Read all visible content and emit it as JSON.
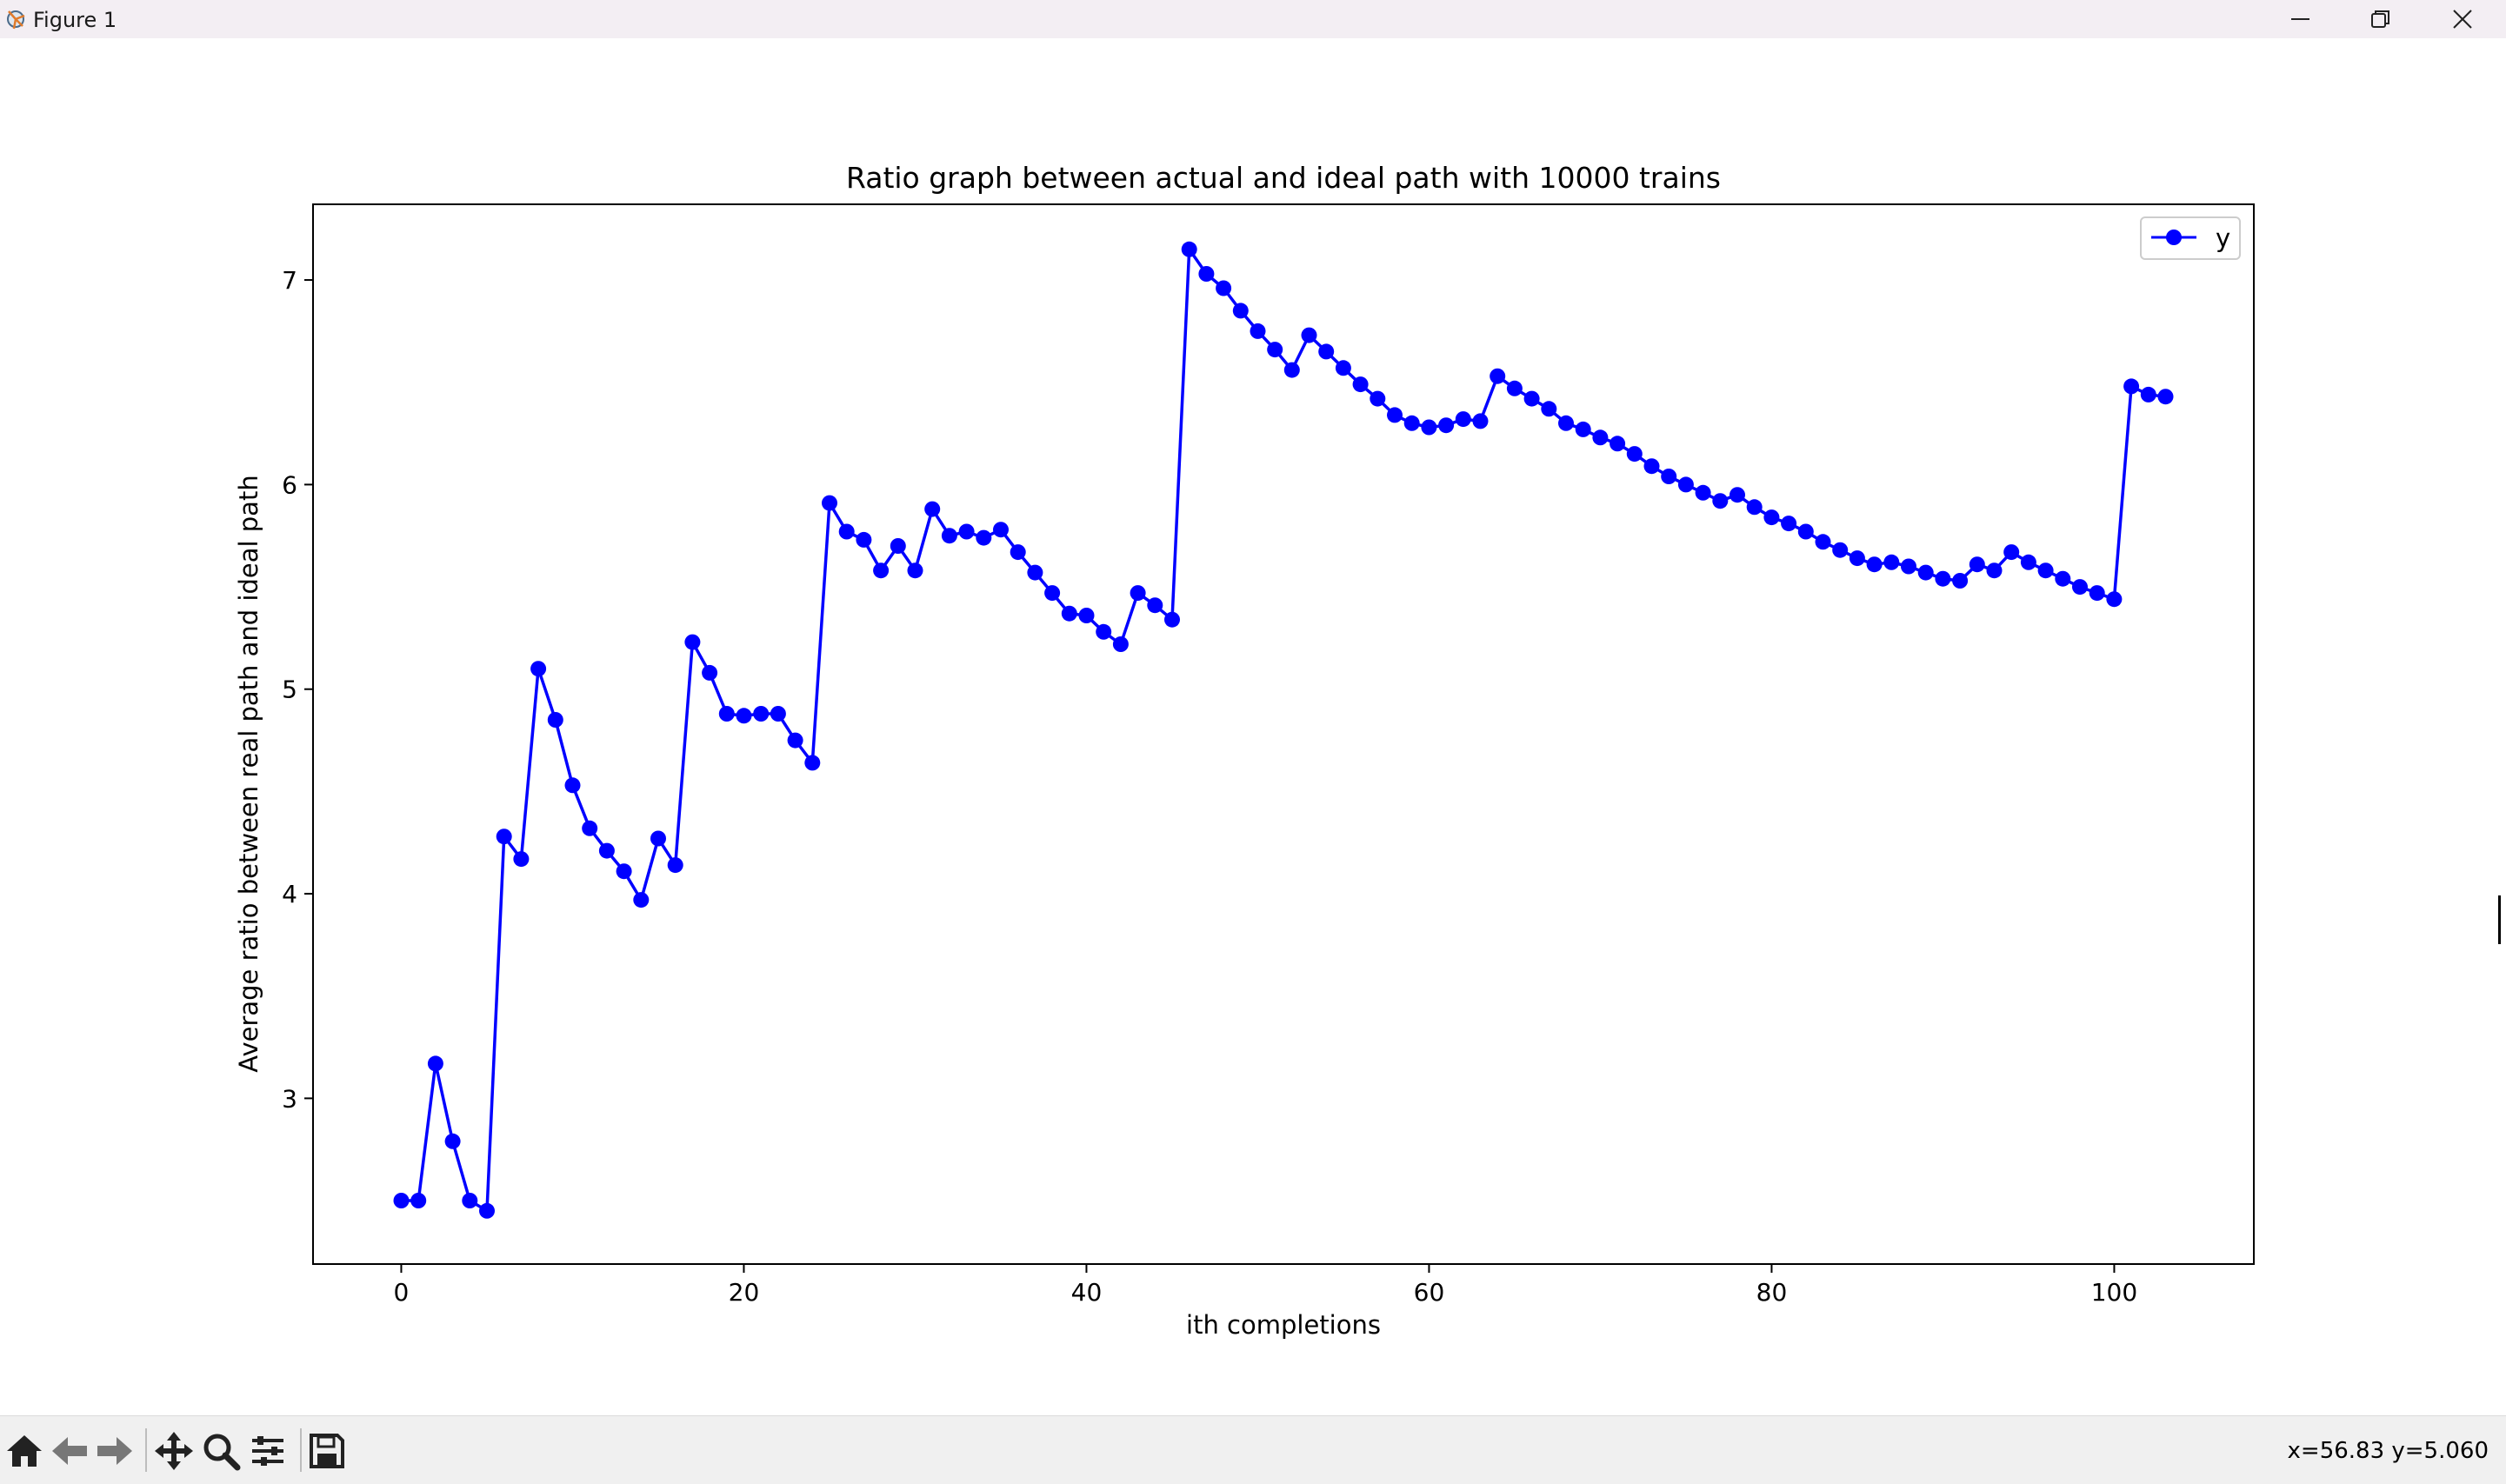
{
  "window": {
    "title": "Figure 1"
  },
  "toolbar": {
    "buttons": [
      "home-icon",
      "back-arrow-icon",
      "forward-arrow-icon",
      "pan-icon",
      "zoom-icon",
      "subplots-config-icon",
      "save-icon"
    ],
    "coords_text": "x=56.83 y=5.060"
  },
  "chart_data": {
    "type": "line",
    "title": "Ratio graph between actual and ideal path with 10000 trains",
    "xlabel": "ith completions",
    "ylabel": "Average ratio between real path and ideal path",
    "xlim": [
      -5.15,
      108.15
    ],
    "ylim": [
      2.19,
      7.37
    ],
    "xticks": [
      0,
      20,
      40,
      60,
      80,
      100
    ],
    "xtick_labels": [
      "0",
      "20",
      "40",
      "60",
      "80",
      "100"
    ],
    "yticks": [
      3,
      4,
      5,
      6,
      7
    ],
    "ytick_labels": [
      "3",
      "4",
      "5",
      "6",
      "7"
    ],
    "grid": false,
    "legend": {
      "position": "top-right",
      "entries": [
        "y"
      ]
    },
    "series": [
      {
        "name": "y",
        "color": "#0000ff",
        "marker": "circle",
        "x": [
          0,
          1,
          2,
          3,
          4,
          5,
          6,
          7,
          8,
          9,
          10,
          11,
          12,
          13,
          14,
          15,
          16,
          17,
          18,
          19,
          20,
          21,
          22,
          23,
          24,
          25,
          26,
          27,
          28,
          29,
          30,
          31,
          32,
          33,
          34,
          35,
          36,
          37,
          38,
          39,
          40,
          41,
          42,
          43,
          44,
          45,
          46,
          47,
          48,
          49,
          50,
          51,
          52,
          53,
          54,
          55,
          56,
          57,
          58,
          59,
          60,
          61,
          62,
          63,
          64,
          65,
          66,
          67,
          68,
          69,
          70,
          71,
          72,
          73,
          74,
          75,
          76,
          77,
          78,
          79,
          80,
          81,
          82,
          83,
          84,
          85,
          86,
          87,
          88,
          89,
          90,
          91,
          92,
          93,
          94,
          95,
          96,
          97,
          98,
          99,
          100,
          101,
          102,
          103
        ],
        "y": [
          2.5,
          2.5,
          3.17,
          2.79,
          2.5,
          2.45,
          4.28,
          4.17,
          5.1,
          4.85,
          4.53,
          4.32,
          4.21,
          4.11,
          3.97,
          4.27,
          4.14,
          5.23,
          5.08,
          4.88,
          4.87,
          4.88,
          4.88,
          4.75,
          4.64,
          5.91,
          5.77,
          5.73,
          5.58,
          5.7,
          5.58,
          5.88,
          5.75,
          5.77,
          5.74,
          5.78,
          5.67,
          5.57,
          5.47,
          5.37,
          5.36,
          5.28,
          5.22,
          5.47,
          5.41,
          5.34,
          7.15,
          7.03,
          6.96,
          6.85,
          6.75,
          6.66,
          6.56,
          6.73,
          6.65,
          6.57,
          6.49,
          6.42,
          6.34,
          6.3,
          6.28,
          6.29,
          6.32,
          6.31,
          6.53,
          6.47,
          6.42,
          6.37,
          6.3,
          6.27,
          6.23,
          6.2,
          6.15,
          6.09,
          6.04,
          6.0,
          5.96,
          5.92,
          5.95,
          5.89,
          5.84,
          5.81,
          5.77,
          5.72,
          5.68,
          5.64,
          5.61,
          5.62,
          5.6,
          5.57,
          5.54,
          5.53,
          5.61,
          5.58,
          5.67,
          5.62,
          5.58,
          5.54,
          5.5,
          5.47,
          5.44,
          6.48,
          6.44,
          6.43
        ]
      }
    ]
  }
}
